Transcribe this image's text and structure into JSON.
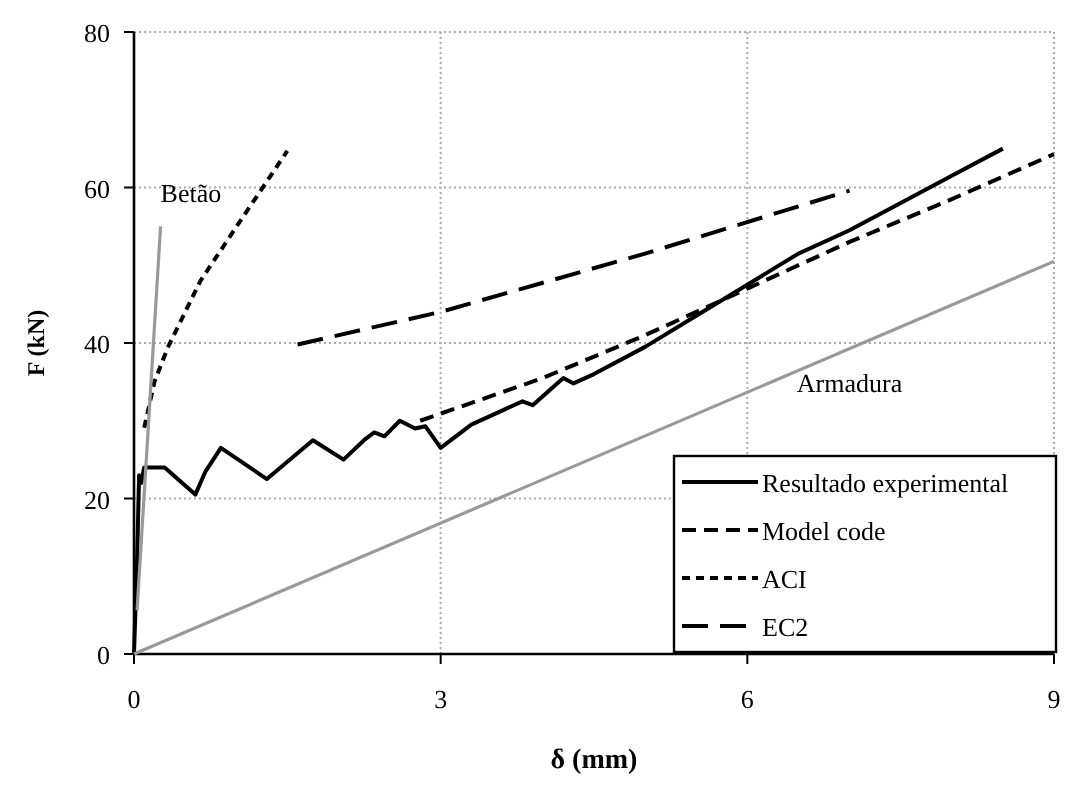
{
  "chart_data": {
    "type": "line",
    "xlabel": "δ  (mm)",
    "ylabel": "F (kN)",
    "xlim": [
      0,
      9
    ],
    "ylim": [
      0,
      80
    ],
    "xticks": [
      0,
      3,
      6,
      9
    ],
    "yticks": [
      0,
      20,
      40,
      60,
      80
    ],
    "grid": true,
    "legend": "bottom right",
    "marker": "none",
    "series": [
      {
        "name": "Resultado experimental",
        "color": "#000000",
        "line_style": "solid",
        "x": [
          0,
          0.03,
          0.05,
          0.07,
          0.1,
          0.3,
          0.6,
          0.7,
          0.85,
          1.3,
          1.75,
          2.05,
          2.25,
          2.35,
          2.45,
          2.6,
          2.75,
          2.85,
          3.0,
          3.3,
          3.8,
          3.9,
          4.2,
          4.3,
          4.5,
          5.0,
          5.5,
          6.0,
          6.5,
          7.0,
          7.5,
          8.0,
          8.5
        ],
        "values": [
          0,
          12,
          23,
          22,
          24,
          24,
          20.5,
          23.5,
          26.5,
          22.5,
          27.5,
          25,
          27.5,
          28.5,
          28,
          30,
          29,
          29.3,
          26.5,
          29.5,
          32.5,
          32,
          35.5,
          34.8,
          36,
          39.5,
          43.5,
          47.5,
          51.5,
          54.5,
          58,
          61.5,
          65
        ]
      },
      {
        "name": "Model code",
        "color": "#000000",
        "line_style": "dashed",
        "x": [
          2.8,
          4,
          5,
          6,
          7,
          8,
          9
        ],
        "values": [
          30,
          35.5,
          41,
          47,
          53,
          58.5,
          64.3
        ]
      },
      {
        "name": "ACI",
        "color": "#000000",
        "line_style": "dotted",
        "x": [
          0.1,
          0.2,
          0.33,
          0.65,
          1.04,
          1.5
        ],
        "values": [
          29.1,
          35,
          39.4,
          48,
          55.7,
          64.7
        ]
      },
      {
        "name": "EC2",
        "color": "#000000",
        "line_style": "longdash",
        "x": [
          1.6,
          3,
          5,
          7
        ],
        "values": [
          39.8,
          44,
          51.5,
          59.6
        ]
      },
      {
        "color": "#999999",
        "line_style": "solid",
        "x": [
          0.03,
          0.26
        ],
        "values": [
          5.6,
          55
        ]
      },
      {
        "color": "#999999",
        "line_style": "solid",
        "x": [
          0,
          9
        ],
        "values": [
          0,
          50.5
        ]
      }
    ],
    "annotations": [
      {
        "text": "Betão",
        "x": 0.26,
        "y": 55
      },
      {
        "text": "Armadura",
        "x": 7,
        "y": 39.3
      }
    ]
  }
}
